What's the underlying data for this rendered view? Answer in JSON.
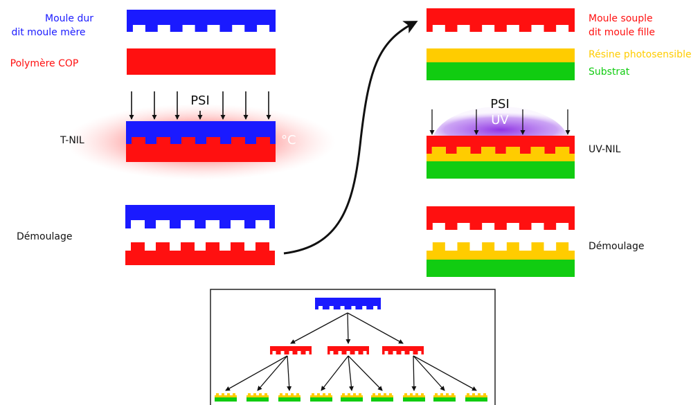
{
  "colors": {
    "hard_mold": "#1a1aff",
    "polymer": "#ff1010",
    "resin": "#ffcc00",
    "substrate": "#11cc11",
    "uv": "#9b3ee6",
    "heat": "#ff6a6a",
    "arrow": "#111111",
    "box_border": "#222222"
  },
  "left": {
    "hard_mold_label_1": "Moule dur",
    "hard_mold_label_2": "dit moule mère",
    "polymer_label": "Polymère COP",
    "pressure_label": "PSI",
    "temperature_label": "°C",
    "tnil_label": "T-NIL",
    "demold_label": "Démoulage"
  },
  "right": {
    "soft_mold_label_1": "Moule souple",
    "soft_mold_label_2": "dit moule fille",
    "resin_label": "Résine photosensible",
    "substrate_label": "Substrat",
    "pressure_label": "PSI",
    "uv_label": "UV",
    "uvnil_label": "UV-NIL",
    "demold_label": "Démoulage"
  },
  "replication": {
    "levels": [
      "hard_mold",
      "soft_molds",
      "replicas"
    ],
    "soft_mold_count": 3,
    "replicas_per_soft_mold": 3
  }
}
